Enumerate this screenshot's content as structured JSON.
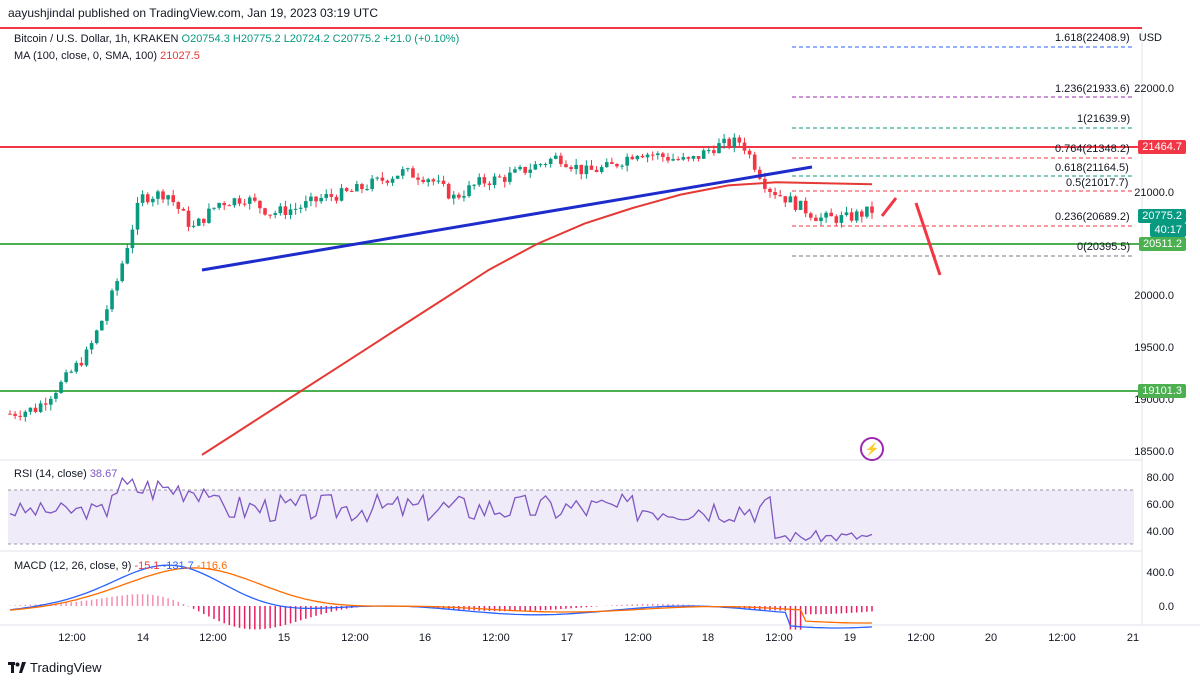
{
  "header": {
    "publisher_line": "aayushjindal published on TradingView.com, Jan 19, 2023 03:19 UTC"
  },
  "legend": {
    "symbol": "Bitcoin / U.S. Dollar, 1h, KRAKEN",
    "open": "O20754.3",
    "high": "H20775.2",
    "low": "L20724.2",
    "close": "C20775.2",
    "change": "+21.0 (+0.10%)",
    "ma_label": "MA (100, close, 0, SMA, 100)",
    "ma_value": "21027.5"
  },
  "currency": "USD",
  "price_axis": {
    "ticks": [
      "22000.0",
      "21000.0",
      "20000.0",
      "19500.0",
      "19000.0",
      "18500.0"
    ],
    "tags": {
      "resistance": "21464.7",
      "last_price": "20775.2",
      "countdown": "40:17",
      "support_upper": "20511.2",
      "support_lower": "19101.3"
    },
    "colors": {
      "resistance": "#f23645",
      "last": "#089981",
      "support": "#4caf50"
    }
  },
  "fib_levels": [
    {
      "label": "1.618(22408.9)",
      "color": "#2962ff"
    },
    {
      "label": "1.236(21933.6)",
      "color": "#9c27b0"
    },
    {
      "label": "1(21639.9)",
      "color": "#089981"
    },
    {
      "label": "0.764(21348.2)",
      "color": "#f23645"
    },
    {
      "label": "0.618(21164.5)",
      "color": "#089981"
    },
    {
      "label": "0.5(21017.7)",
      "color": "#f23645"
    },
    {
      "label": "0.236(20689.2)",
      "color": "#f23645"
    },
    {
      "label": "0(20395.5)",
      "color": "#787b86"
    }
  ],
  "rsi": {
    "label": "RSI (14, close)",
    "value": "38.67",
    "ticks": [
      "80.00",
      "60.00",
      "40.00"
    ]
  },
  "macd": {
    "label": "MACD (12, 26, close, 9)",
    "hist": "-15.1",
    "macd": "-131.7",
    "signal": "-116.6",
    "ticks": [
      "400.0",
      "0.0"
    ]
  },
  "time_axis": [
    "12:00",
    "14",
    "12:00",
    "15",
    "12:00",
    "16",
    "12:00",
    "17",
    "12:00",
    "18",
    "12:00",
    "19",
    "12:00",
    "20",
    "12:00",
    "21"
  ],
  "brand": "TradingView",
  "chart_data": {
    "type": "candlestick",
    "title": "Bitcoin / U.S. Dollar, 1h, KRAKEN",
    "ylabel": "USD",
    "ylim": [
      18350,
      22550
    ],
    "indicators": [
      "MA 100 SMA",
      "RSI 14",
      "MACD 12 26 9"
    ],
    "horizontal_levels": [
      21464.7,
      20511.2,
      19101.3
    ],
    "trendline": {
      "from": 20250,
      "to": 21270
    },
    "ma_series": [
      18400,
      18700,
      19000,
      19300,
      19600,
      19900,
      20200,
      20450,
      20650,
      20800,
      20930,
      21020,
      21050,
      21040,
      21030
    ],
    "price_path": [
      18800,
      18850,
      19100,
      19400,
      20000,
      20900,
      20950,
      20600,
      20850,
      20900,
      20750,
      20800,
      20900,
      20950,
      21050,
      21150,
      21100,
      20900,
      21050,
      21100,
      21200,
      21300,
      21150,
      21200,
      21350,
      21300,
      21250,
      21400,
      21450,
      21000,
      20850,
      20700,
      20700,
      20775
    ]
  }
}
